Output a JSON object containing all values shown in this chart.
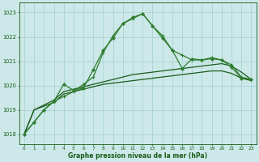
{
  "hours": [
    0,
    1,
    2,
    3,
    4,
    5,
    6,
    7,
    8,
    9,
    10,
    11,
    12,
    13,
    14,
    15,
    16,
    17,
    18,
    19,
    20,
    21,
    22,
    23
  ],
  "line_main": [
    1018.0,
    1018.5,
    1019.0,
    1019.35,
    1020.05,
    1019.8,
    1019.9,
    1020.65,
    1021.45,
    1021.95,
    1022.55,
    1022.8,
    1022.95,
    1022.45,
    1021.95,
    1021.45,
    1020.7,
    1021.1,
    1021.05,
    1021.1,
    1021.05,
    1020.75,
    1020.3,
    1020.25
  ],
  "line_secondary": [
    1018.0,
    1018.5,
    1019.0,
    1019.35,
    1019.55,
    1019.75,
    1020.05,
    1020.35,
    1021.35,
    1022.05,
    1022.55,
    1022.75,
    1022.95,
    1022.45,
    1022.05,
    1021.45,
    1021.25,
    1021.05,
    1021.05,
    1021.15,
    1021.05,
    1020.85,
    1020.35,
    1020.25
  ],
  "line_flat1": [
    1018.0,
    1019.0,
    1019.2,
    1019.4,
    1019.75,
    1019.85,
    1019.95,
    1020.05,
    1020.15,
    1020.25,
    1020.35,
    1020.45,
    1020.5,
    1020.55,
    1020.6,
    1020.65,
    1020.7,
    1020.75,
    1020.8,
    1020.85,
    1020.9,
    1020.8,
    1020.55,
    1020.25
  ],
  "line_flat2": [
    1018.0,
    1019.0,
    1019.15,
    1019.3,
    1019.65,
    1019.75,
    1019.85,
    1019.95,
    1020.05,
    1020.1,
    1020.15,
    1020.2,
    1020.25,
    1020.3,
    1020.35,
    1020.4,
    1020.45,
    1020.5,
    1020.55,
    1020.6,
    1020.6,
    1020.5,
    1020.3,
    1020.2
  ],
  "bg_color": "#cce8e8",
  "grid_color": "#aad4d4",
  "line_color_dark": "#1a5c1a",
  "line_color_bright": "#2e7d2e",
  "ylabel_vals": [
    1018,
    1019,
    1020,
    1021,
    1022,
    1023
  ],
  "xlabel": "Graphe pression niveau de la mer (hPa)",
  "ylim": [
    1017.6,
    1023.4
  ],
  "xlim": [
    -0.5,
    23.5
  ]
}
